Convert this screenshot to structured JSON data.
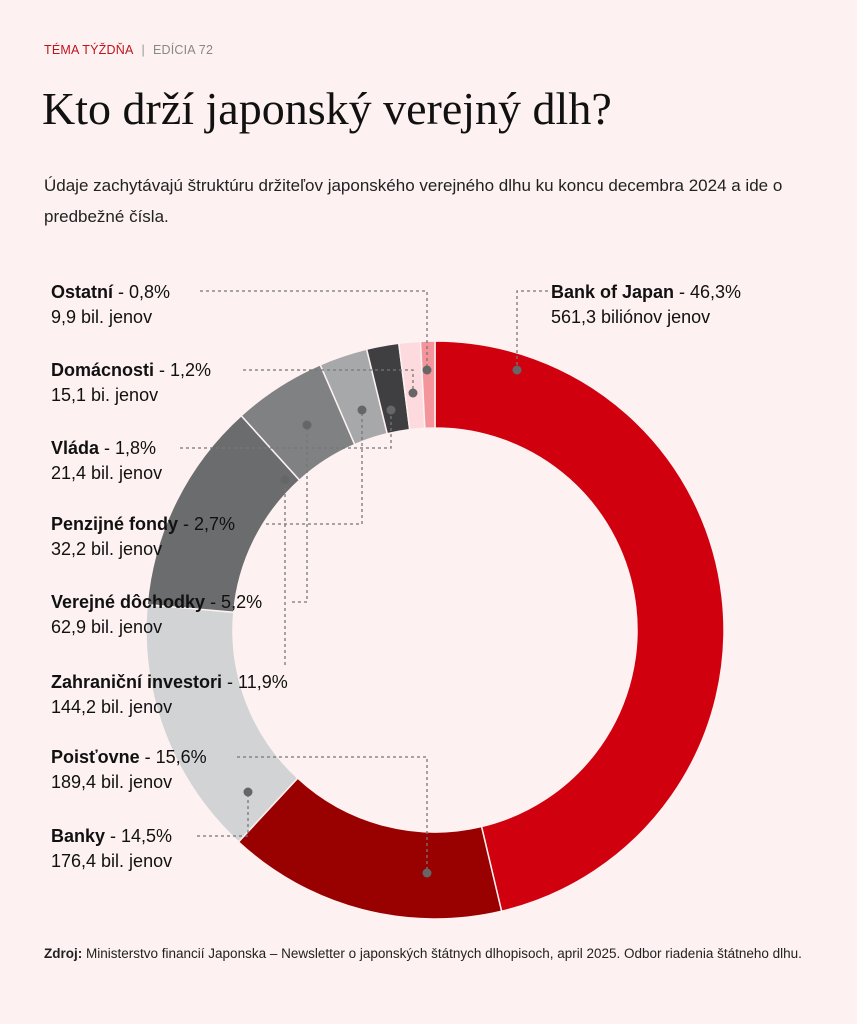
{
  "header": {
    "kicker": "TÉMA TÝŽDŇA",
    "separator": "|",
    "edition": "EDÍCIA 72",
    "title": "Kto drží japonský verejný dlh?",
    "subtitle": "Údaje zachytávajú štruktúru držiteľov japonského verejného dlhu ku koncu decembra 2024 a ide o predbežné čísla."
  },
  "chart_data": {
    "type": "pie",
    "donut": true,
    "title": "Kto drží japonský verejný dlh?",
    "slices": [
      {
        "name": "Bank of Japan",
        "value": 46.3,
        "pct": " - 46,3%",
        "amount": "561,3 biliónov jenov",
        "color": "#d0000f"
      },
      {
        "name": "Poisťovne",
        "value": 15.6,
        "pct": " - 15,6%",
        "amount": "189,4 bil. jenov",
        "color": "#990000"
      },
      {
        "name": "Banky",
        "value": 14.5,
        "pct": " - 14,5%",
        "amount": "176,4 bil. jenov",
        "color": "#d1d3d4"
      },
      {
        "name": "Zahraniční investori",
        "value": 11.9,
        "pct": " - 11,9%",
        "amount": "144,2 bil. jenov",
        "color": "#6b6c6e"
      },
      {
        "name": "Verejné dôchodky",
        "value": 5.2,
        "pct": " - 5,2%",
        "amount": "62,9 bil. jenov",
        "color": "#808183"
      },
      {
        "name": "Penzijné fondy",
        "value": 2.7,
        "pct": " - 2,7%",
        "amount": "32,2 bil. jenov",
        "color": "#a7a8aa"
      },
      {
        "name": "Vláda",
        "value": 1.8,
        "pct": " - 1,8%",
        "amount": "21,4 bil. jenov",
        "color": "#3f3f41"
      },
      {
        "name": "Domácnosti",
        "value": 1.2,
        "pct": " - 1,2%",
        "amount": "15,1 bi. jenov",
        "color": "#fcdade"
      },
      {
        "name": "Ostatní",
        "value": 0.8,
        "pct": " - 0,8%",
        "amount": "9,9 bil. jenov",
        "color": "#f4959c"
      }
    ]
  },
  "source": {
    "label": "Zdroj:",
    "text": " Ministerstvo financií Japonska – Newsletter o japonských štátnych dlhopisoch, april 2025. Odbor riadenia štátneho dlhu."
  }
}
